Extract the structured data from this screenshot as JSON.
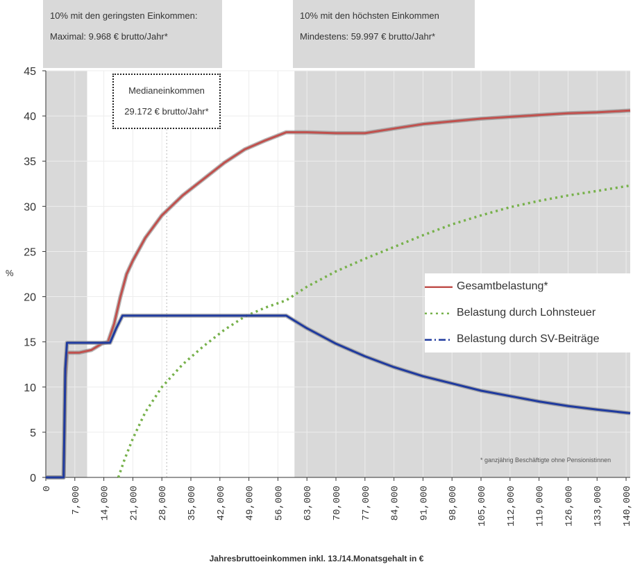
{
  "annotations": {
    "low_income_line1": "10% mit den geringsten Einkommen:",
    "low_income_line2": "Maximal: 9.968 € brutto/Jahr*",
    "high_income_line1": "10% mit den höchsten Einkommen",
    "high_income_line2": "Mindestens: 59.997 € brutto/Jahr*",
    "median_line1": "Medianeinkommen",
    "median_line2": "29.172 € brutto/Jahr*",
    "footnote": "* ganzjährig Beschäftigte ohne Pensionistinnen"
  },
  "chart_data": {
    "type": "line",
    "title": "",
    "xlabel": "Jahresbruttoeinkommen inkl. 13./14.Monatsgehalt in €",
    "ylabel": "%",
    "xlim": [
      0,
      141000
    ],
    "ylim": [
      0,
      45
    ],
    "x_ticks": [
      0,
      7000,
      14000,
      21000,
      28000,
      35000,
      42000,
      49000,
      56000,
      63000,
      70000,
      77000,
      84000,
      91000,
      98000,
      105000,
      112000,
      119000,
      126000,
      133000,
      140000
    ],
    "x_tick_labels": [
      "0",
      "7,000",
      "14,000",
      "21,000",
      "28,000",
      "35,000",
      "42,000",
      "49,000",
      "56,000",
      "63,000",
      "70,000",
      "77,000",
      "84,000",
      "91,000",
      "98,000",
      "105,000",
      "112,000",
      "119,000",
      "126,000",
      "133,000",
      "140,000"
    ],
    "y_ticks": [
      0,
      5,
      10,
      15,
      20,
      25,
      30,
      35,
      40,
      45
    ],
    "shaded_regions": [
      [
        0,
        9968
      ],
      [
        59997,
        141000
      ]
    ],
    "median_x": 29172,
    "grid": true,
    "legend_position": "right",
    "colors": {
      "total": "#c0504d",
      "lohnsteuer": "#77b14b",
      "sv": "#1f3a9e"
    },
    "series": [
      {
        "name": "Gesamtbelastung*",
        "key": "total",
        "style": "solid",
        "points": [
          [
            0,
            0
          ],
          [
            4300,
            0
          ],
          [
            4700,
            11
          ],
          [
            5100,
            13.8
          ],
          [
            8000,
            13.8
          ],
          [
            11000,
            14.1
          ],
          [
            13500,
            14.8
          ],
          [
            15000,
            15
          ],
          [
            16500,
            17
          ],
          [
            18000,
            20
          ],
          [
            19500,
            22.5
          ],
          [
            21000,
            24
          ],
          [
            24000,
            26.5
          ],
          [
            28000,
            29
          ],
          [
            33000,
            31.2
          ],
          [
            38000,
            33
          ],
          [
            43000,
            34.8
          ],
          [
            48000,
            36.3
          ],
          [
            53000,
            37.3
          ],
          [
            58000,
            38.2
          ],
          [
            63000,
            38.2
          ],
          [
            70000,
            38.1
          ],
          [
            77000,
            38.1
          ],
          [
            84000,
            38.6
          ],
          [
            91000,
            39.1
          ],
          [
            98000,
            39.4
          ],
          [
            105000,
            39.7
          ],
          [
            112000,
            39.9
          ],
          [
            119000,
            40.1
          ],
          [
            126000,
            40.3
          ],
          [
            133000,
            40.4
          ],
          [
            141000,
            40.6
          ]
        ]
      },
      {
        "name": "Belastung durch Lohnsteuer",
        "key": "lohnsteuer",
        "style": "dotted",
        "points": [
          [
            17500,
            0
          ],
          [
            19000,
            2
          ],
          [
            21000,
            4.3
          ],
          [
            24000,
            7.2
          ],
          [
            28000,
            10
          ],
          [
            33000,
            12.5
          ],
          [
            38000,
            14.5
          ],
          [
            43000,
            16.3
          ],
          [
            48000,
            17.8
          ],
          [
            53000,
            18.8
          ],
          [
            58000,
            19.6
          ],
          [
            63000,
            21.1
          ],
          [
            70000,
            22.8
          ],
          [
            77000,
            24.2
          ],
          [
            84000,
            25.5
          ],
          [
            91000,
            26.8
          ],
          [
            98000,
            28
          ],
          [
            105000,
            29
          ],
          [
            112000,
            29.9
          ],
          [
            119000,
            30.6
          ],
          [
            126000,
            31.2
          ],
          [
            133000,
            31.7
          ],
          [
            141000,
            32.3
          ]
        ]
      },
      {
        "name": "Belastung durch SV-Beiträge",
        "key": "sv",
        "style": "dashdot",
        "points": [
          [
            0,
            0
          ],
          [
            4300,
            0
          ],
          [
            4700,
            12
          ],
          [
            5100,
            14.9
          ],
          [
            8000,
            14.9
          ],
          [
            15500,
            14.9
          ],
          [
            17000,
            16.5
          ],
          [
            18500,
            17.9
          ],
          [
            25000,
            17.9
          ],
          [
            35000,
            17.9
          ],
          [
            45000,
            17.9
          ],
          [
            55000,
            17.9
          ],
          [
            58000,
            17.9
          ],
          [
            63000,
            16.5
          ],
          [
            70000,
            14.8
          ],
          [
            77000,
            13.4
          ],
          [
            84000,
            12.2
          ],
          [
            91000,
            11.2
          ],
          [
            98000,
            10.4
          ],
          [
            105000,
            9.6
          ],
          [
            112000,
            9
          ],
          [
            119000,
            8.4
          ],
          [
            126000,
            7.9
          ],
          [
            133000,
            7.5
          ],
          [
            141000,
            7.1
          ]
        ]
      }
    ]
  }
}
